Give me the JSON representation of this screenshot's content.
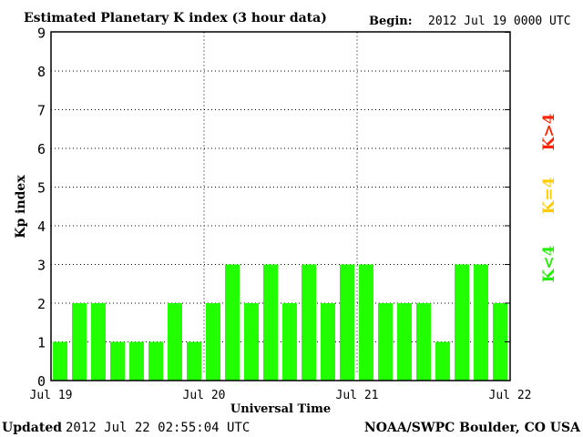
{
  "chart_data": {
    "type": "bar",
    "title": "Estimated Planetary K index (3 hour data)",
    "begin_label": "Begin:",
    "begin_value": "2012 Jul 19 0000 UTC",
    "xlabel": "Universal Time",
    "ylabel": "Kp index",
    "ylim": [
      0,
      9
    ],
    "yticks": [
      "0",
      "1",
      "2",
      "3",
      "4",
      "5",
      "6",
      "7",
      "8",
      "9"
    ],
    "xticks": [
      "Jul 19",
      "Jul 20",
      "Jul 21",
      "Jul 22"
    ],
    "grid": true,
    "values": [
      1,
      2,
      2,
      1,
      1,
      1,
      2,
      1,
      2,
      3,
      2,
      3,
      2,
      3,
      2,
      3,
      3,
      2,
      2,
      2,
      1,
      3,
      3,
      2
    ],
    "bar_color": "#22ff00",
    "legend": [
      {
        "label": "K<4",
        "color": "#22ee00"
      },
      {
        "label": "K=4",
        "color": "#ffcc00"
      },
      {
        "label": "K>4",
        "color": "#ff2200"
      }
    ],
    "legend_placement": "right"
  },
  "footer": {
    "updated_label": "Updated",
    "updated_value": "2012 Jul 22 02:55:04 UTC",
    "source": "NOAA/SWPC Boulder, CO USA"
  }
}
